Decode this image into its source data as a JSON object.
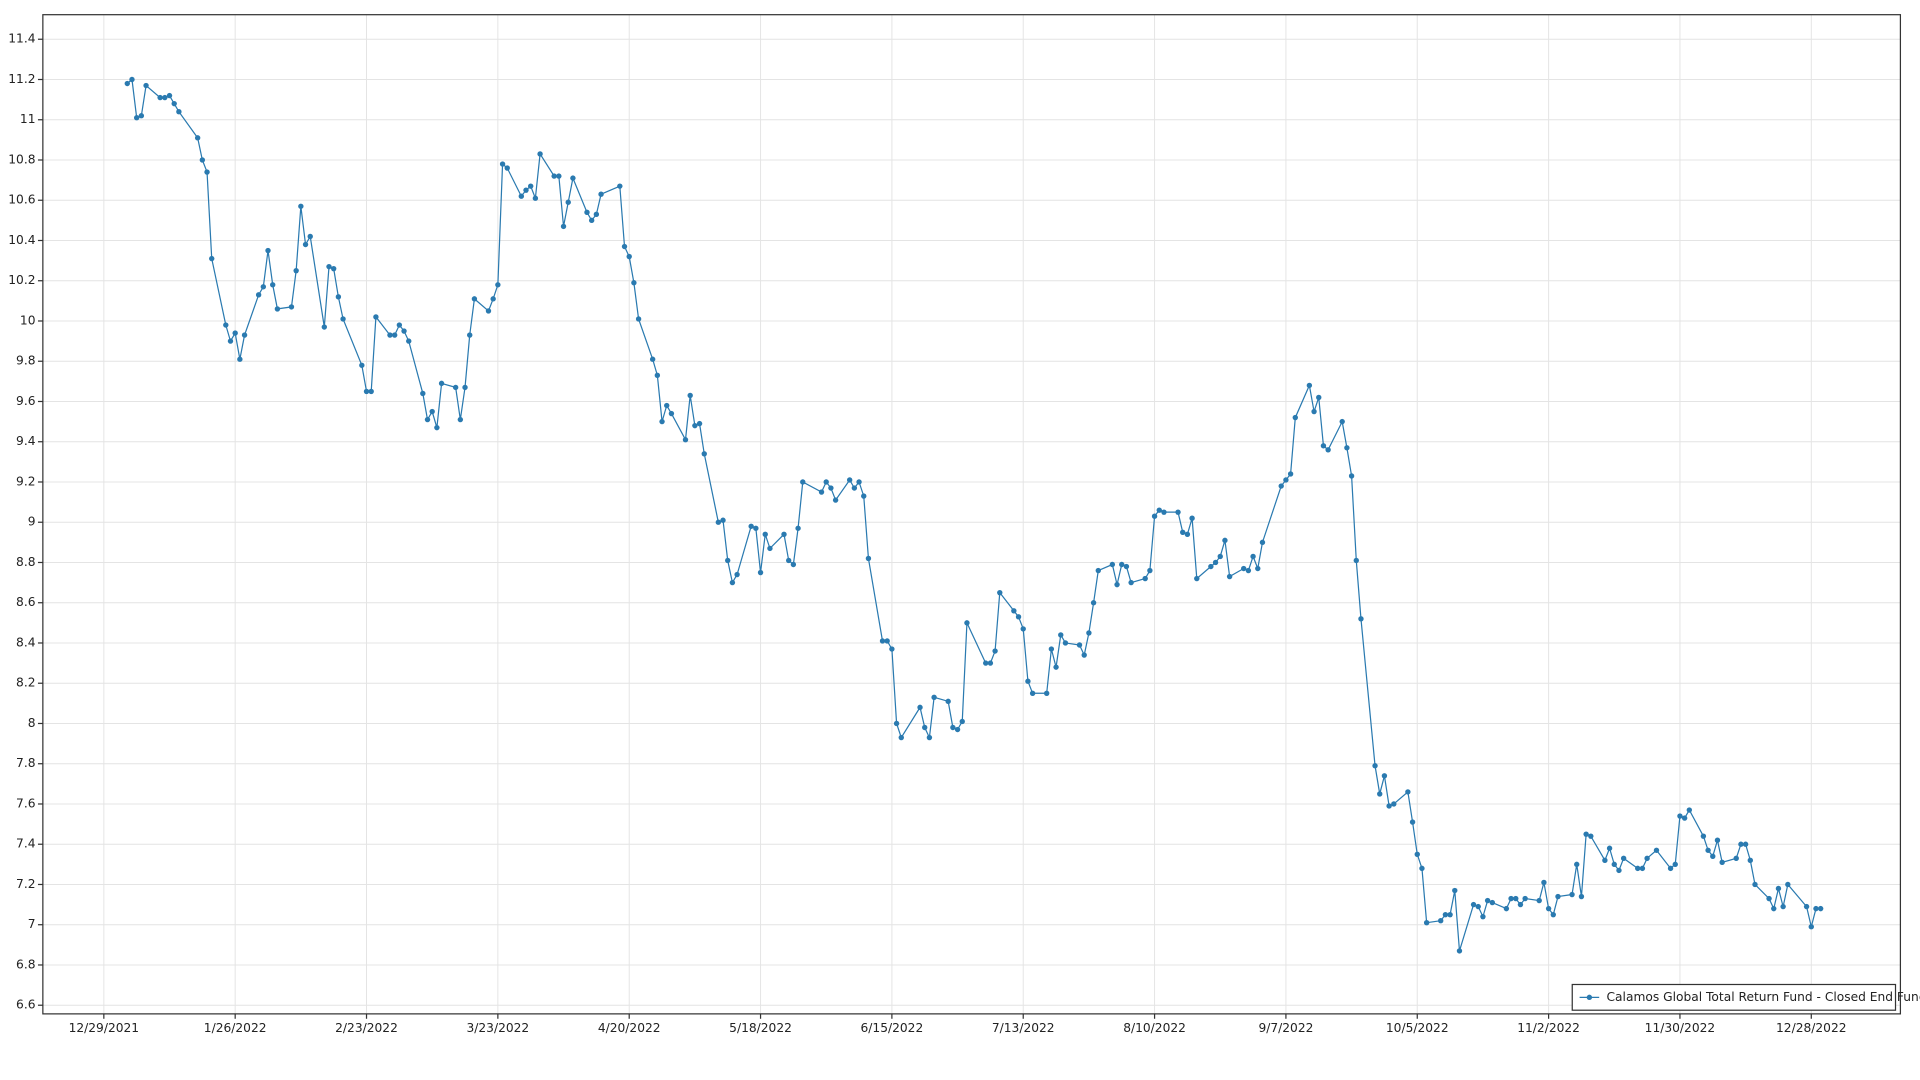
{
  "chart_data": {
    "type": "line",
    "series": [
      {
        "name": "Calamos Global Total Return Fund - Closed End Fund",
        "color": "#2a7ab0",
        "values": [
          11.18,
          11.2,
          11.01,
          11.02,
          11.17,
          11.11,
          11.11,
          11.12,
          11.08,
          11.04,
          10.91,
          10.8,
          10.74,
          10.31,
          9.98,
          9.9,
          9.94,
          9.81,
          9.93,
          10.13,
          10.17,
          10.35,
          10.18,
          10.06,
          10.07,
          10.25,
          10.57,
          10.38,
          10.42,
          9.97,
          10.27,
          10.26,
          10.12,
          10.01,
          9.78,
          9.65,
          9.65,
          10.02,
          9.93,
          9.93,
          9.98,
          9.95,
          9.9,
          9.64,
          9.51,
          9.55,
          9.47,
          9.69,
          9.67,
          9.51,
          9.67,
          9.93,
          10.11,
          10.05,
          10.11,
          10.18,
          10.78,
          10.76,
          10.62,
          10.65,
          10.67,
          10.61,
          10.83,
          10.72,
          10.72,
          10.47,
          10.59,
          10.71,
          10.54,
          10.5,
          10.53,
          10.63,
          10.67,
          10.37,
          10.32,
          10.19,
          10.01,
          9.81,
          9.73,
          9.5,
          9.58,
          9.54,
          9.41,
          9.63,
          9.48,
          9.49,
          9.34,
          9.0,
          9.01,
          8.81,
          8.7,
          8.74,
          8.98,
          8.97,
          8.75,
          8.94,
          8.87,
          8.94,
          8.81,
          8.79,
          8.97,
          9.2,
          9.15,
          9.2,
          9.17,
          9.11,
          9.21,
          9.17,
          9.2,
          9.13,
          8.82,
          8.41,
          8.41,
          8.37,
          8.0,
          7.93,
          8.08,
          7.98,
          7.93,
          8.13,
          8.11,
          7.98,
          7.97,
          8.01,
          8.5,
          8.3,
          8.3,
          8.36,
          8.65,
          8.56,
          8.53,
          8.47,
          8.21,
          8.15,
          8.15,
          8.37,
          8.28,
          8.44,
          8.4,
          8.39,
          8.34,
          8.45,
          8.6,
          8.76,
          8.79,
          8.69,
          8.79,
          8.78,
          8.7,
          8.72,
          8.76,
          9.03,
          9.06,
          9.05,
          9.05,
          8.95,
          8.94,
          9.02,
          8.72,
          8.78,
          8.8,
          8.83,
          8.91,
          8.73,
          8.77,
          8.76,
          8.83,
          8.77,
          8.9,
          9.18,
          9.21,
          9.24,
          9.52,
          9.68,
          9.55,
          9.62,
          9.38,
          9.36,
          9.5,
          9.37,
          9.23,
          8.81,
          8.52,
          7.79,
          7.65,
          7.74,
          7.59,
          7.6,
          7.66,
          7.51,
          7.35,
          7.28,
          7.01,
          7.02,
          7.05,
          7.05,
          7.17,
          6.87,
          7.1,
          7.09,
          7.04,
          7.12,
          7.11,
          7.08,
          7.13,
          7.13,
          7.1,
          7.13,
          7.12,
          7.21,
          7.08,
          7.05,
          7.14,
          7.15,
          7.3,
          7.14,
          7.45,
          7.44,
          7.32,
          7.38,
          7.3,
          7.27,
          7.33,
          7.28,
          7.28,
          7.33,
          7.37,
          7.28,
          7.3,
          7.54,
          7.53,
          7.57,
          7.44,
          7.37,
          7.34,
          7.42,
          7.31,
          7.33,
          7.4,
          7.4,
          7.32,
          7.2,
          7.13,
          7.08,
          7.18,
          7.09,
          7.2,
          7.09,
          6.99,
          7.08,
          7.08
        ]
      }
    ],
    "x": [
      "1/3/2022",
      "1/4/2022",
      "1/5/2022",
      "1/6/2022",
      "1/7/2022",
      "1/10/2022",
      "1/11/2022",
      "1/12/2022",
      "1/13/2022",
      "1/14/2022",
      "1/18/2022",
      "1/19/2022",
      "1/20/2022",
      "1/21/2022",
      "1/24/2022",
      "1/25/2022",
      "1/26/2022",
      "1/27/2022",
      "1/28/2022",
      "1/31/2022",
      "2/1/2022",
      "2/2/2022",
      "2/3/2022",
      "2/4/2022",
      "2/7/2022",
      "2/8/2022",
      "2/9/2022",
      "2/10/2022",
      "2/11/2022",
      "2/14/2022",
      "2/15/2022",
      "2/16/2022",
      "2/17/2022",
      "2/18/2022",
      "2/22/2022",
      "2/23/2022",
      "2/24/2022",
      "2/25/2022",
      "2/28/2022",
      "3/1/2022",
      "3/2/2022",
      "3/3/2022",
      "3/4/2022",
      "3/7/2022",
      "3/8/2022",
      "3/9/2022",
      "3/10/2022",
      "3/11/2022",
      "3/14/2022",
      "3/15/2022",
      "3/16/2022",
      "3/17/2022",
      "3/18/2022",
      "3/21/2022",
      "3/22/2022",
      "3/23/2022",
      "3/24/2022",
      "3/25/2022",
      "3/28/2022",
      "3/29/2022",
      "3/30/2022",
      "3/31/2022",
      "4/1/2022",
      "4/4/2022",
      "4/5/2022",
      "4/6/2022",
      "4/7/2022",
      "4/8/2022",
      "4/11/2022",
      "4/12/2022",
      "4/13/2022",
      "4/14/2022",
      "4/18/2022",
      "4/19/2022",
      "4/20/2022",
      "4/21/2022",
      "4/22/2022",
      "4/25/2022",
      "4/26/2022",
      "4/27/2022",
      "4/28/2022",
      "4/29/2022",
      "5/2/2022",
      "5/3/2022",
      "5/4/2022",
      "5/5/2022",
      "5/6/2022",
      "5/9/2022",
      "5/10/2022",
      "5/11/2022",
      "5/12/2022",
      "5/13/2022",
      "5/16/2022",
      "5/17/2022",
      "5/18/2022",
      "5/19/2022",
      "5/20/2022",
      "5/23/2022",
      "5/24/2022",
      "5/25/2022",
      "5/26/2022",
      "5/27/2022",
      "5/31/2022",
      "6/1/2022",
      "6/2/2022",
      "6/3/2022",
      "6/6/2022",
      "6/7/2022",
      "6/8/2022",
      "6/9/2022",
      "6/10/2022",
      "6/13/2022",
      "6/14/2022",
      "6/15/2022",
      "6/16/2022",
      "6/17/2022",
      "6/21/2022",
      "6/22/2022",
      "6/23/2022",
      "6/24/2022",
      "6/27/2022",
      "6/28/2022",
      "6/29/2022",
      "6/30/2022",
      "7/1/2022",
      "7/5/2022",
      "7/6/2022",
      "7/7/2022",
      "7/8/2022",
      "7/11/2022",
      "7/12/2022",
      "7/13/2022",
      "7/14/2022",
      "7/15/2022",
      "7/18/2022",
      "7/19/2022",
      "7/20/2022",
      "7/21/2022",
      "7/22/2022",
      "7/25/2022",
      "7/26/2022",
      "7/27/2022",
      "7/28/2022",
      "7/29/2022",
      "8/1/2022",
      "8/2/2022",
      "8/3/2022",
      "8/4/2022",
      "8/5/2022",
      "8/8/2022",
      "8/9/2022",
      "8/10/2022",
      "8/11/2022",
      "8/12/2022",
      "8/15/2022",
      "8/16/2022",
      "8/17/2022",
      "8/18/2022",
      "8/19/2022",
      "8/22/2022",
      "8/23/2022",
      "8/24/2022",
      "8/25/2022",
      "8/26/2022",
      "8/29/2022",
      "8/30/2022",
      "8/31/2022",
      "9/1/2022",
      "9/2/2022",
      "9/6/2022",
      "9/7/2022",
      "9/8/2022",
      "9/9/2022",
      "9/12/2022",
      "9/13/2022",
      "9/14/2022",
      "9/15/2022",
      "9/16/2022",
      "9/19/2022",
      "9/20/2022",
      "9/21/2022",
      "9/22/2022",
      "9/23/2022",
      "9/26/2022",
      "9/27/2022",
      "9/28/2022",
      "9/29/2022",
      "9/30/2022",
      "10/3/2022",
      "10/4/2022",
      "10/5/2022",
      "10/6/2022",
      "10/7/2022",
      "10/10/2022",
      "10/11/2022",
      "10/12/2022",
      "10/13/2022",
      "10/14/2022",
      "10/17/2022",
      "10/18/2022",
      "10/19/2022",
      "10/20/2022",
      "10/21/2022",
      "10/24/2022",
      "10/25/2022",
      "10/26/2022",
      "10/27/2022",
      "10/28/2022",
      "10/31/2022",
      "11/1/2022",
      "11/2/2022",
      "11/3/2022",
      "11/4/2022",
      "11/7/2022",
      "11/8/2022",
      "11/9/2022",
      "11/10/2022",
      "11/11/2022",
      "11/14/2022",
      "11/15/2022",
      "11/16/2022",
      "11/17/2022",
      "11/18/2022",
      "11/21/2022",
      "11/22/2022",
      "11/23/2022",
      "11/25/2022",
      "11/28/2022",
      "11/29/2022",
      "11/30/2022",
      "12/1/2022",
      "12/2/2022",
      "12/5/2022",
      "12/6/2022",
      "12/7/2022",
      "12/8/2022",
      "12/9/2022",
      "12/12/2022",
      "12/13/2022",
      "12/14/2022",
      "12/15/2022",
      "12/16/2022",
      "12/19/2022",
      "12/20/2022",
      "12/21/2022",
      "12/22/2022",
      "12/23/2022",
      "12/27/2022",
      "12/28/2022",
      "12/29/2022",
      "12/30/2022"
    ],
    "xlim": [
      "12/16/2021",
      "1/16/2023"
    ],
    "xticks": [
      "12/29/2021",
      "1/26/2022",
      "2/23/2022",
      "3/23/2022",
      "4/20/2022",
      "5/18/2022",
      "6/15/2022",
      "7/13/2022",
      "8/10/2022",
      "9/7/2022",
      "10/5/2022",
      "11/2/2022",
      "11/30/2022",
      "12/28/2022"
    ],
    "ylim": [
      6.557,
      11.522
    ],
    "yticks": [
      6.6,
      6.8,
      7,
      7.2,
      7.4,
      7.6,
      7.8,
      8,
      8.2,
      8.4,
      8.6,
      8.8,
      9,
      9.2,
      9.4,
      9.6,
      9.8,
      10,
      10.2,
      10.4,
      10.6,
      10.8,
      11,
      11.2,
      11.4
    ],
    "grid": true,
    "legend": "lower right"
  }
}
